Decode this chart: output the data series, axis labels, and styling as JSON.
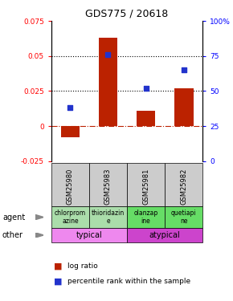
{
  "title": "GDS775 / 20618",
  "samples": [
    "GSM25980",
    "GSM25983",
    "GSM25981",
    "GSM25982"
  ],
  "log_ratios": [
    -0.008,
    0.063,
    0.011,
    0.027
  ],
  "percentile_ranks": [
    38,
    76,
    52,
    65
  ],
  "ylim_left": [
    -0.025,
    0.075
  ],
  "ylim_right": [
    0,
    100
  ],
  "yticks_left": [
    -0.025,
    0,
    0.025,
    0.05,
    0.075
  ],
  "ytick_labels_left": [
    "-0.025",
    "0",
    "0.025",
    "0.05",
    "0.075"
  ],
  "yticks_right": [
    0,
    25,
    50,
    75,
    100
  ],
  "ytick_labels_right": [
    "0",
    "25",
    "50",
    "75",
    "100%"
  ],
  "bar_color": "#BB2200",
  "dot_color": "#2233CC",
  "agent_labels": [
    "chlorprom\nazine",
    "thioridazin\ne",
    "olanzap\nine",
    "quetiapi\nne"
  ],
  "agent_colors_left": [
    "#aaddaa",
    "#aaddaa"
  ],
  "agent_colors_right": [
    "#66dd66",
    "#66dd66"
  ],
  "other_labels": [
    "typical",
    "atypical"
  ],
  "other_color_left": "#ee88ee",
  "other_color_right": "#cc44cc",
  "cell_bg": "#cccccc",
  "hline_color": "#BB2200",
  "dotted_vals": [
    0.025,
    0.05
  ]
}
